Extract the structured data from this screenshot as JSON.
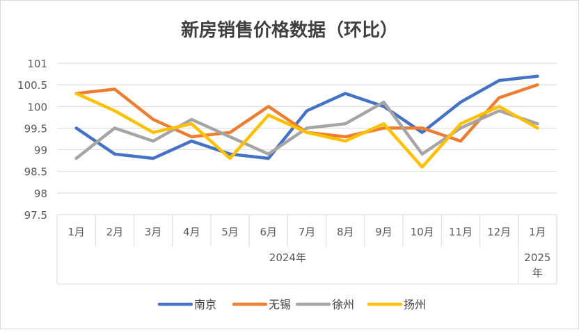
{
  "chart_data": {
    "type": "line",
    "title": "新房销售价格数据（环比）",
    "categories": [
      "1月",
      "2月",
      "3月",
      "4月",
      "5月",
      "6月",
      "7月",
      "8月",
      "9月",
      "10月",
      "11月",
      "12月",
      "1月"
    ],
    "year_groups": [
      {
        "label": "2024年",
        "count": 12
      },
      {
        "label_lines": [
          "2025",
          "年"
        ],
        "count": 1
      }
    ],
    "y_ticks": [
      "97.5",
      "98",
      "98.5",
      "99",
      "99.5",
      "100",
      "100.5",
      "101"
    ],
    "ylim": [
      97.5,
      101
    ],
    "grid": "horizontal",
    "legend_position": "bottom",
    "series": [
      {
        "name": "南京",
        "color": "#4472C4",
        "values": [
          99.5,
          98.9,
          98.8,
          99.2,
          98.9,
          98.8,
          99.9,
          100.3,
          100.0,
          99.4,
          100.1,
          100.6,
          100.7
        ]
      },
      {
        "name": "无锡",
        "color": "#ED7D31",
        "values": [
          100.3,
          100.4,
          99.7,
          99.3,
          99.4,
          100.0,
          99.4,
          99.3,
          99.5,
          99.5,
          99.2,
          100.2,
          100.5
        ]
      },
      {
        "name": "徐州",
        "color": "#A5A5A5",
        "values": [
          98.8,
          99.5,
          99.2,
          99.7,
          99.3,
          98.9,
          99.5,
          99.6,
          100.1,
          98.9,
          99.5,
          99.9,
          99.6
        ]
      },
      {
        "name": "扬州",
        "color": "#FFC000",
        "values": [
          100.3,
          99.9,
          99.4,
          99.6,
          98.8,
          99.8,
          99.4,
          99.2,
          99.6,
          98.6,
          99.6,
          100.0,
          99.5
        ]
      }
    ]
  }
}
